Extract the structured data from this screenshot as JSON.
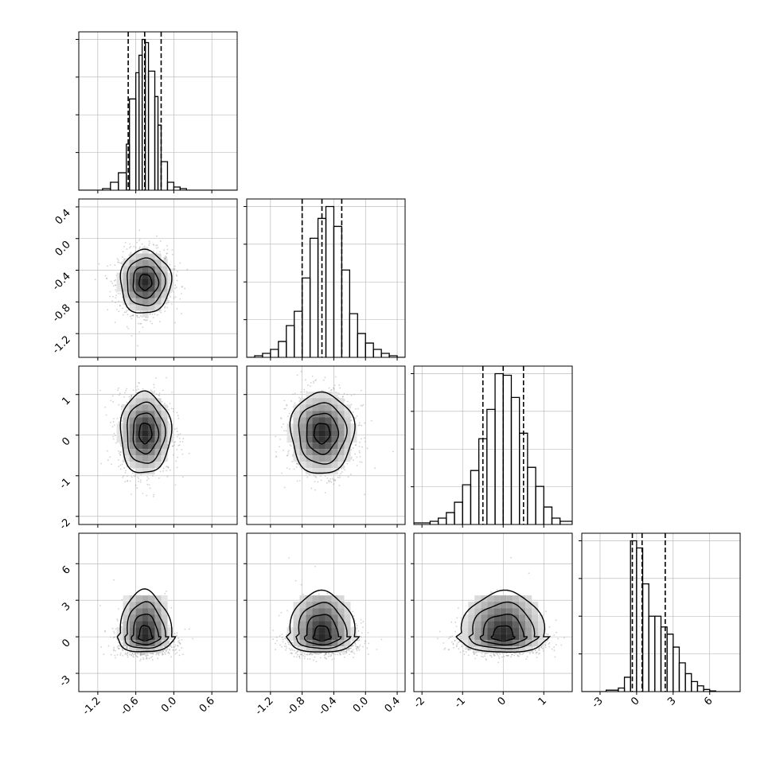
{
  "chart_data": {
    "type": "corner",
    "params": [
      {
        "id": "p1",
        "range": [
          -1.5,
          1.0
        ],
        "ticks": [
          "-1.2",
          "-0.6",
          "0.0",
          "0.6"
        ],
        "tick_values": [
          -1.2,
          -0.6,
          0.0,
          0.6
        ],
        "mean": -0.45,
        "sd": 0.2,
        "quantiles": [
          -0.72,
          -0.46,
          -0.2
        ],
        "xlabel": "",
        "ylabel": ""
      },
      {
        "id": "p2",
        "range": [
          -1.5,
          0.5
        ],
        "ticks": [
          "-1.2",
          "-0.8",
          "-0.4",
          "0.0",
          "0.4"
        ],
        "tick_values": [
          -1.2,
          -0.8,
          -0.4,
          0.0,
          0.4
        ],
        "mean": -0.55,
        "sd": 0.2,
        "quantiles": [
          -0.8,
          -0.55,
          -0.3
        ],
        "xlabel": "",
        "ylabel": ""
      },
      {
        "id": "p3",
        "range": [
          -2.2,
          1.7
        ],
        "ticks": [
          "-2",
          "-1",
          "0",
          "1"
        ],
        "tick_values": [
          -2,
          -1,
          0,
          1
        ],
        "mean": 0.0,
        "sd": 0.5,
        "quantiles": [
          -0.5,
          0.0,
          0.5
        ],
        "xlabel": "",
        "ylabel": ""
      },
      {
        "id": "p4",
        "range": [
          -4.5,
          8.5
        ],
        "ticks": [
          "-3",
          "0",
          "3",
          "6"
        ],
        "tick_values": [
          -3,
          0,
          3,
          6
        ],
        "mean": 0.7,
        "sd": 1.2,
        "quantiles": [
          -0.35,
          0.45,
          2.35
        ],
        "xlabel": "",
        "ylabel": ""
      }
    ],
    "y_ticks": {
      "p2": [
        "0.4",
        "0.0",
        "-0.4",
        "-0.8",
        "-1.2"
      ],
      "p3": [
        "1",
        "0",
        "-1",
        "-2"
      ],
      "p4": [
        "6",
        "3",
        "0",
        "-3"
      ]
    },
    "histograms": {
      "p1": {
        "edges": [
          -1.5,
          -1.375,
          -1.25,
          -1.125,
          -1.0,
          -0.875,
          -0.75,
          -0.7,
          -0.6,
          -0.55,
          -0.5,
          -0.45,
          -0.4,
          -0.3,
          -0.25,
          -0.2,
          -0.1,
          0.0,
          0.1,
          0.2,
          0.3,
          0.45,
          0.6,
          1.0
        ],
        "counts": [
          0,
          0,
          0,
          2,
          10,
          22,
          58,
          115,
          148,
          170,
          190,
          186,
          150,
          118,
          82,
          36,
          10,
          4,
          2,
          0,
          0,
          0,
          0
        ]
      },
      "p2": {
        "edges": [
          -1.5,
          -1.4,
          -1.3,
          -1.2,
          -1.1,
          -1.0,
          -0.9,
          -0.8,
          -0.7,
          -0.6,
          -0.5,
          -0.4,
          -0.3,
          -0.2,
          -0.1,
          0.0,
          0.1,
          0.2,
          0.3,
          0.4,
          0.5
        ],
        "counts": [
          0,
          2,
          5,
          10,
          20,
          40,
          58,
          100,
          150,
          175,
          190,
          165,
          110,
          55,
          30,
          18,
          10,
          5,
          2,
          0
        ]
      },
      "p3": {
        "edges": [
          -2.2,
          -1.8,
          -1.6,
          -1.4,
          -1.2,
          -1.0,
          -0.8,
          -0.6,
          -0.4,
          -0.2,
          0.0,
          0.2,
          0.4,
          0.6,
          0.8,
          1.0,
          1.2,
          1.4,
          1.7
        ],
        "counts": [
          2,
          4,
          8,
          15,
          28,
          50,
          68,
          108,
          145,
          190,
          188,
          160,
          115,
          72,
          48,
          22,
          8,
          4
        ]
      },
      "p4": {
        "edges": [
          -4.5,
          -2.5,
          -1.5,
          -1.0,
          -0.5,
          0.0,
          0.5,
          1.0,
          1.5,
          2.0,
          2.5,
          3.0,
          3.5,
          4.0,
          4.5,
          5.0,
          5.5,
          6.0,
          6.5,
          8.5
        ],
        "counts": [
          0,
          2,
          5,
          20,
          210,
          200,
          150,
          105,
          105,
          90,
          80,
          62,
          40,
          25,
          14,
          8,
          3,
          1,
          0
        ]
      }
    },
    "pairs": [
      {
        "x": "p1",
        "y": "p2",
        "cx": -0.45,
        "cy": -0.55,
        "shape": "ellipse"
      },
      {
        "x": "p1",
        "y": "p3",
        "cx": -0.45,
        "cy": 0.05,
        "shape": "ellipse"
      },
      {
        "x": "p2",
        "y": "p3",
        "cx": -0.55,
        "cy": 0.05,
        "shape": "ellipse"
      },
      {
        "x": "p1",
        "y": "p4",
        "cx": -0.45,
        "cy": 0.0,
        "shape": "skewed"
      },
      {
        "x": "p2",
        "y": "p4",
        "cx": -0.55,
        "cy": 0.0,
        "shape": "skewed"
      },
      {
        "x": "p3",
        "y": "p4",
        "cx": 0.0,
        "cy": 0.0,
        "shape": "skewed"
      }
    ],
    "contour_levels": [
      0.5,
      1.0,
      1.5,
      2.0
    ],
    "grid": true,
    "colors": {
      "line": "#000000",
      "quantile": "#000000",
      "grid": "#b0b0b0",
      "density": "#000000"
    }
  }
}
